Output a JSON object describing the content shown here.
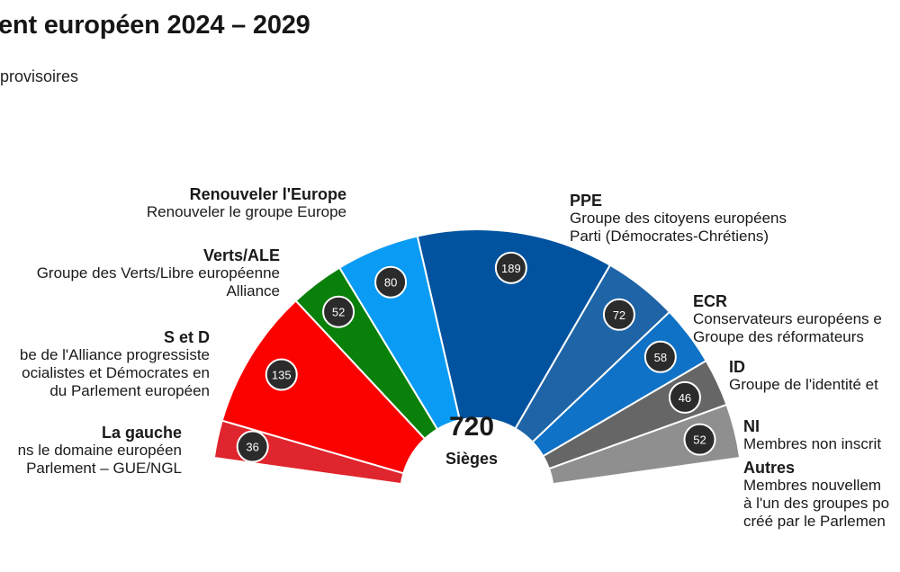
{
  "title": "ent européen 2024 – 2029",
  "subtitle": "provisoires",
  "total": {
    "value": "720",
    "label": "Sièges"
  },
  "chart_data": {
    "type": "pie",
    "subtype": "hemicycle",
    "total": 720,
    "groups": [
      {
        "name": "Autres",
        "desc": [
          "Membres nouvellem",
          "à l'un des groupes po",
          "créé par le Parlemen"
        ],
        "seats": 52,
        "color": "#8f8f8f"
      },
      {
        "name": "NI",
        "desc": [
          "Membres non inscrit"
        ],
        "seats": 46,
        "color": "#666666"
      },
      {
        "name": "ID",
        "desc": [
          "Groupe de l'identité et"
        ],
        "seats": 58,
        "color": "#0f72c6"
      },
      {
        "name": "ECR",
        "desc": [
          "Conservateurs européens e",
          "Groupe des réformateurs"
        ],
        "seats": 72,
        "color": "#1e64a6"
      },
      {
        "name": "PPE",
        "desc": [
          "Groupe des citoyens européens",
          "Parti (Démocrates-Chrétiens)"
        ],
        "seats": 189,
        "color": "#0153a0"
      },
      {
        "name": "Renouveler l'Europe",
        "desc": [
          "Renouveler le groupe Europe"
        ],
        "seats": 80,
        "color": "#0a9bf4"
      },
      {
        "name": "Verts/ALE",
        "desc": [
          "Groupe des Verts/Libre européenne",
          "Alliance"
        ],
        "seats": 52,
        "color": "#098009"
      },
      {
        "name": "S et D",
        "desc": [
          "be de l'Alliance progressiste",
          "ocialistes et Démocrates en",
          "du Parlement européen"
        ],
        "seats": 135,
        "color": "#fb0201"
      },
      {
        "name": "La gauche",
        "desc": [
          "ns le domaine européen",
          "Parlement – GUE/NGL"
        ],
        "seats": 36,
        "color": "#df252d"
      }
    ]
  }
}
